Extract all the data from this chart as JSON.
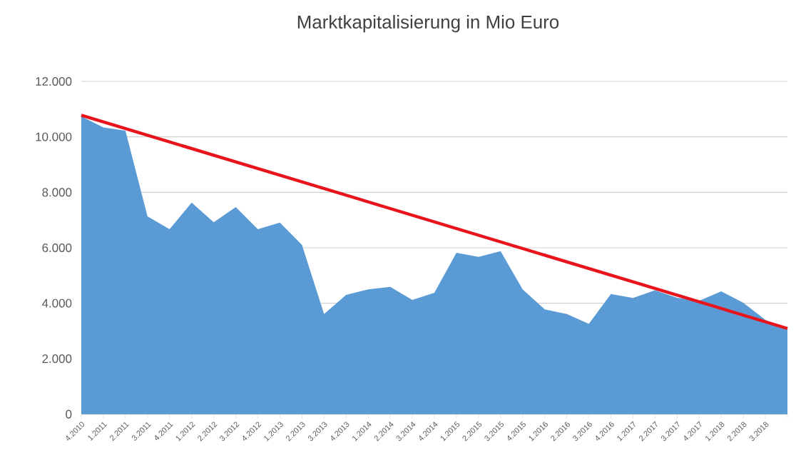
{
  "chart_data": {
    "type": "area",
    "title": "Marktkapitalisierung in Mio Euro",
    "categories": [
      "4.2010",
      "1.2011",
      "2.2011",
      "3.2011",
      "4.2011",
      "1.2012",
      "2.2012",
      "3.2012",
      "4.2012",
      "1.2013",
      "2.2013",
      "3.2013",
      "4.2013",
      "1.2014",
      "2.2014",
      "3.2014",
      "4.2014",
      "1.2015",
      "2.2015",
      "3.2015",
      "4.2015",
      "1.2016",
      "2.2016",
      "3.2016",
      "4.2016",
      "1.2017",
      "2.2017",
      "3.2017",
      "4.2017",
      "1.2018",
      "2.2018",
      "3.2018",
      null
    ],
    "series": [
      {
        "color": "#5b9bd5",
        "values": [
          10740,
          10340,
          10220,
          7130,
          6670,
          7630,
          6920,
          7470,
          6670,
          6910,
          6100,
          3610,
          4300,
          4500,
          4590,
          4120,
          4380,
          5820,
          5670,
          5880,
          4500,
          3780,
          3610,
          3260,
          4330,
          4190,
          4470,
          4200,
          4090,
          4430,
          4020,
          3400,
          3060
        ]
      },
      {
        "type": "line",
        "color": "#e8141c",
        "values": [
          10780,
          null,
          null,
          null,
          null,
          null,
          null,
          null,
          null,
          null,
          null,
          null,
          null,
          null,
          null,
          null,
          null,
          null,
          null,
          null,
          null,
          null,
          null,
          null,
          null,
          null,
          null,
          null,
          null,
          null,
          null,
          null,
          3090
        ]
      }
    ],
    "ylim": [
      0,
      12000
    ],
    "yticks": [
      {
        "value": 0,
        "label": "0"
      },
      {
        "value": 2000,
        "label": "2.000"
      },
      {
        "value": 4000,
        "label": "4.000"
      },
      {
        "value": 6000,
        "label": "6.000"
      },
      {
        "value": 8000,
        "label": "8.000"
      },
      {
        "value": 10000,
        "label": "10.000"
      },
      {
        "value": 12000,
        "label": "12.000"
      }
    ],
    "grid": "y"
  }
}
